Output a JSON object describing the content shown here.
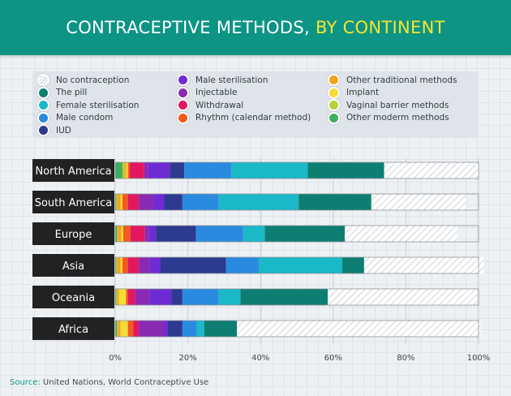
{
  "title": {
    "main": "CONTRACEPTIVE METHODS,",
    "highlight": "BY CONTINENT"
  },
  "colors": {
    "header_bg": "#0d9485",
    "highlight": "#f6e62e",
    "label_bg": "#222222"
  },
  "legend": [
    {
      "label": "No contraception",
      "color": "hatch"
    },
    {
      "label": "Male sterilisation",
      "color": "#6f2bd3"
    },
    {
      "label": "Other traditional methods",
      "color": "#f2a31e"
    },
    {
      "label": "The pill",
      "color": "#0e7e72"
    },
    {
      "label": "Injectable",
      "color": "#8a2ab3"
    },
    {
      "label": "Implant",
      "color": "#f6dc3a"
    },
    {
      "label": "Female sterilisation",
      "color": "#1bb8c8"
    },
    {
      "label": "Withdrawal",
      "color": "#e2175f"
    },
    {
      "label": "Vaginal barrier methods",
      "color": "#b7cf3b"
    },
    {
      "label": "Male condom",
      "color": "#2a8ae0"
    },
    {
      "label": "Rhythm (calendar method)",
      "color": "#f25a1e"
    },
    {
      "label": "Other moderm methods",
      "color": "#3cae5d"
    },
    {
      "label": "IUD",
      "color": "#2c3a8f"
    }
  ],
  "source": {
    "label": "Source:",
    "text": "United Nations, World Contraceptive Use"
  },
  "chart_data": {
    "type": "bar",
    "orientation": "horizontal",
    "stacked": true,
    "categories": [
      "North America",
      "South America",
      "Europe",
      "Asia",
      "Oceania",
      "Africa"
    ],
    "xlim": [
      0,
      100
    ],
    "x_ticks": [
      "0%",
      "20%",
      "40%",
      "60%",
      "80%",
      "100%"
    ],
    "series": [
      {
        "name": "Other moderm methods",
        "color": "#3cae5d",
        "values": [
          2,
          0.3,
          0.5,
          0.3,
          0.3,
          0.5
        ]
      },
      {
        "name": "Vaginal barrier methods",
        "color": "#b7cf3b",
        "values": [
          0.5,
          0.2,
          0.2,
          0.2,
          0.2,
          0.2
        ]
      },
      {
        "name": "Other traditional methods",
        "color": "#f2a31e",
        "values": [
          0.5,
          1,
          1,
          1,
          0.5,
          0.8
        ]
      },
      {
        "name": "Implant",
        "color": "#f6dc3a",
        "values": [
          0.5,
          0.5,
          0.5,
          0.5,
          2,
          2
        ]
      },
      {
        "name": "Rhythm (calendar method)",
        "color": "#f25a1e",
        "values": [
          0.5,
          1.5,
          2,
          1.5,
          0.5,
          1.5
        ]
      },
      {
        "name": "Withdrawal",
        "color": "#e2175f",
        "values": [
          4,
          3,
          4,
          3,
          2,
          1.5
        ]
      },
      {
        "name": "Injectable",
        "color": "#8a2ab3",
        "values": [
          1,
          4,
          1,
          3,
          4,
          7
        ]
      },
      {
        "name": "Male sterilisation",
        "color": "#6f2bd3",
        "values": [
          6,
          3,
          2,
          3,
          6,
          1
        ]
      },
      {
        "name": "IUD",
        "color": "#2c3a8f",
        "values": [
          4,
          5,
          11,
          18,
          3,
          4
        ]
      },
      {
        "name": "Male condom",
        "color": "#2a8ae0",
        "values": [
          13,
          10,
          13,
          9,
          10,
          4
        ]
      },
      {
        "name": "Female sterilisation",
        "color": "#1bb8c8",
        "values": [
          21,
          22,
          6,
          23,
          6,
          2
        ]
      },
      {
        "name": "The pill",
        "color": "#0e7e72",
        "values": [
          21,
          20,
          22,
          6,
          24,
          9
        ]
      },
      {
        "name": "No contraception",
        "color": "hatch",
        "values": [
          26,
          26,
          31,
          33,
          41,
          67
        ]
      }
    ]
  }
}
